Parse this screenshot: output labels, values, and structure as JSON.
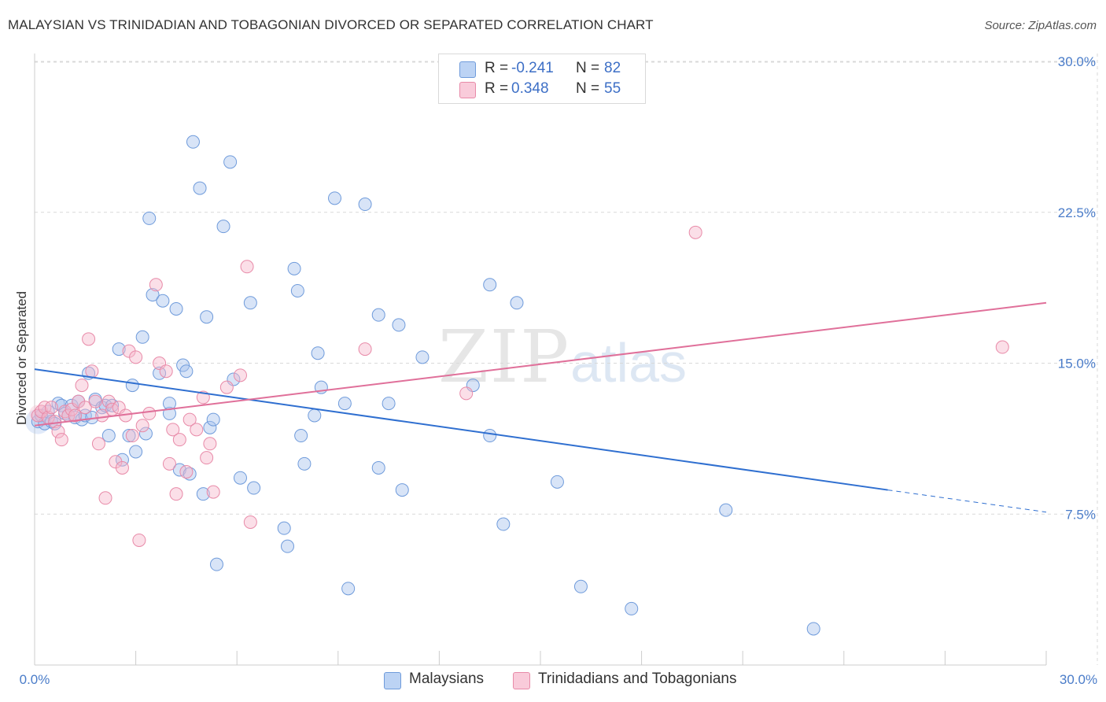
{
  "title": "MALAYSIAN VS TRINIDADIAN AND TOBAGONIAN DIVORCED OR SEPARATED CORRELATION CHART",
  "source": "Source: ZipAtlas.com",
  "watermark": {
    "zip": "ZIP",
    "atlas": "atlas"
  },
  "legend": {
    "rows": [
      {
        "r_label": "R =",
        "r_value": "-0.241",
        "n_label": "N =",
        "n_value": "82"
      },
      {
        "r_label": "R =",
        "r_value": "0.348",
        "n_label": "N =",
        "n_value": "55"
      }
    ]
  },
  "bottom_legend": [
    "Malaysians",
    "Trinidadians and Tobagonians"
  ],
  "colors": {
    "blue_fill": "#a8c4ee",
    "blue_stroke": "#6f9bdb",
    "blue_line": "#2f6fd0",
    "pink_fill": "#f6b8cc",
    "pink_stroke": "#e88aa8",
    "pink_line": "#e0709a",
    "grid": "#d9d9d9",
    "tick_text": "#4a7cc9"
  },
  "chart_data": {
    "type": "scatter",
    "title": "MALAYSIAN VS TRINIDADIAN AND TOBAGONIAN DIVORCED OR SEPARATED CORRELATION CHART",
    "xlabel": "",
    "ylabel": "Divorced or Separated",
    "xlim": [
      0,
      30
    ],
    "ylim": [
      0,
      30
    ],
    "x_tick_labels": [
      "0.0%",
      "30.0%"
    ],
    "y_ticks": [
      7.5,
      15.0,
      22.5,
      30.0
    ],
    "y_tick_labels": [
      "7.5%",
      "15.0%",
      "22.5%",
      "30.0%"
    ],
    "grid": true,
    "legend_position": "top-center",
    "series": [
      {
        "name": "Malaysians",
        "r": -0.241,
        "n": 82,
        "trend": {
          "x": [
            0,
            25.3
          ],
          "y": [
            14.7,
            8.7
          ],
          "dashed_to": [
            30,
            7.6
          ]
        },
        "points": [
          [
            0.1,
            12.1
          ],
          [
            0.2,
            12.4
          ],
          [
            0.3,
            12.0
          ],
          [
            0.4,
            12.6
          ],
          [
            0.5,
            12.1
          ],
          [
            0.6,
            12.0
          ],
          [
            0.7,
            13.0
          ],
          [
            0.8,
            12.9
          ],
          [
            0.9,
            12.5
          ],
          [
            1.0,
            12.4
          ],
          [
            1.1,
            12.9
          ],
          [
            1.2,
            12.3
          ],
          [
            1.3,
            13.1
          ],
          [
            1.4,
            12.2
          ],
          [
            1.5,
            12.4
          ],
          [
            1.6,
            14.5
          ],
          [
            1.7,
            12.3
          ],
          [
            1.8,
            13.2
          ],
          [
            2.0,
            12.8
          ],
          [
            2.1,
            12.9
          ],
          [
            2.2,
            11.4
          ],
          [
            2.3,
            12.9
          ],
          [
            2.5,
            15.7
          ],
          [
            2.6,
            10.2
          ],
          [
            2.8,
            11.4
          ],
          [
            2.9,
            13.9
          ],
          [
            3.0,
            10.6
          ],
          [
            3.2,
            16.3
          ],
          [
            3.3,
            11.5
          ],
          [
            3.4,
            22.2
          ],
          [
            3.5,
            18.4
          ],
          [
            3.7,
            14.5
          ],
          [
            3.8,
            18.1
          ],
          [
            4.0,
            12.5
          ],
          [
            4.0,
            13.0
          ],
          [
            4.2,
            17.7
          ],
          [
            4.3,
            9.7
          ],
          [
            4.4,
            14.9
          ],
          [
            4.5,
            14.6
          ],
          [
            4.6,
            9.5
          ],
          [
            4.7,
            26.0
          ],
          [
            4.9,
            23.7
          ],
          [
            5.0,
            8.5
          ],
          [
            5.1,
            17.3
          ],
          [
            5.2,
            11.8
          ],
          [
            5.3,
            12.2
          ],
          [
            5.4,
            5.0
          ],
          [
            5.6,
            21.8
          ],
          [
            5.8,
            25.0
          ],
          [
            5.9,
            14.2
          ],
          [
            6.1,
            9.3
          ],
          [
            6.4,
            18.0
          ],
          [
            6.5,
            8.8
          ],
          [
            7.4,
            6.8
          ],
          [
            7.5,
            5.9
          ],
          [
            7.7,
            19.7
          ],
          [
            7.8,
            18.6
          ],
          [
            7.9,
            11.4
          ],
          [
            8.0,
            10.0
          ],
          [
            8.3,
            12.4
          ],
          [
            8.4,
            15.5
          ],
          [
            8.5,
            13.8
          ],
          [
            8.9,
            23.2
          ],
          [
            9.2,
            13.0
          ],
          [
            9.3,
            3.8
          ],
          [
            9.8,
            22.9
          ],
          [
            10.2,
            9.8
          ],
          [
            10.2,
            17.4
          ],
          [
            10.5,
            13.0
          ],
          [
            10.8,
            16.9
          ],
          [
            10.9,
            8.7
          ],
          [
            11.5,
            15.3
          ],
          [
            13.0,
            13.9
          ],
          [
            13.5,
            11.4
          ],
          [
            13.5,
            18.9
          ],
          [
            13.9,
            7.0
          ],
          [
            14.3,
            18.0
          ],
          [
            15.5,
            9.1
          ],
          [
            16.2,
            3.9
          ],
          [
            17.7,
            2.8
          ],
          [
            20.5,
            7.7
          ],
          [
            23.1,
            1.8
          ]
        ]
      },
      {
        "name": "Trinidadians and Tobagonians",
        "r": 0.348,
        "n": 55,
        "trend": {
          "x": [
            0,
            30
          ],
          "y": [
            11.9,
            18.0
          ]
        },
        "points": [
          [
            0.1,
            12.4
          ],
          [
            0.2,
            12.6
          ],
          [
            0.3,
            12.8
          ],
          [
            0.4,
            12.3
          ],
          [
            0.5,
            12.8
          ],
          [
            0.6,
            12.1
          ],
          [
            0.7,
            11.6
          ],
          [
            0.8,
            11.2
          ],
          [
            0.9,
            12.6
          ],
          [
            1.0,
            12.4
          ],
          [
            1.1,
            12.7
          ],
          [
            1.2,
            12.4
          ],
          [
            1.3,
            13.1
          ],
          [
            1.4,
            13.9
          ],
          [
            1.5,
            12.8
          ],
          [
            1.6,
            16.2
          ],
          [
            1.7,
            14.6
          ],
          [
            1.8,
            13.1
          ],
          [
            1.9,
            11.0
          ],
          [
            2.0,
            12.4
          ],
          [
            2.1,
            8.3
          ],
          [
            2.2,
            13.1
          ],
          [
            2.3,
            12.7
          ],
          [
            2.4,
            10.1
          ],
          [
            2.5,
            12.8
          ],
          [
            2.6,
            9.8
          ],
          [
            2.7,
            12.4
          ],
          [
            2.8,
            15.6
          ],
          [
            2.9,
            11.4
          ],
          [
            3.0,
            15.3
          ],
          [
            3.1,
            6.2
          ],
          [
            3.2,
            11.9
          ],
          [
            3.4,
            12.5
          ],
          [
            3.6,
            18.9
          ],
          [
            3.7,
            15.0
          ],
          [
            3.9,
            14.6
          ],
          [
            4.0,
            10.0
          ],
          [
            4.1,
            11.7
          ],
          [
            4.2,
            8.5
          ],
          [
            4.3,
            11.2
          ],
          [
            4.5,
            9.6
          ],
          [
            4.6,
            12.2
          ],
          [
            4.8,
            11.7
          ],
          [
            5.0,
            13.3
          ],
          [
            5.1,
            10.3
          ],
          [
            5.2,
            11.0
          ],
          [
            5.3,
            8.6
          ],
          [
            5.7,
            13.8
          ],
          [
            6.1,
            14.4
          ],
          [
            6.3,
            19.8
          ],
          [
            6.4,
            7.1
          ],
          [
            9.8,
            15.7
          ],
          [
            12.8,
            13.5
          ],
          [
            19.6,
            21.5
          ],
          [
            28.7,
            15.8
          ]
        ]
      }
    ]
  }
}
